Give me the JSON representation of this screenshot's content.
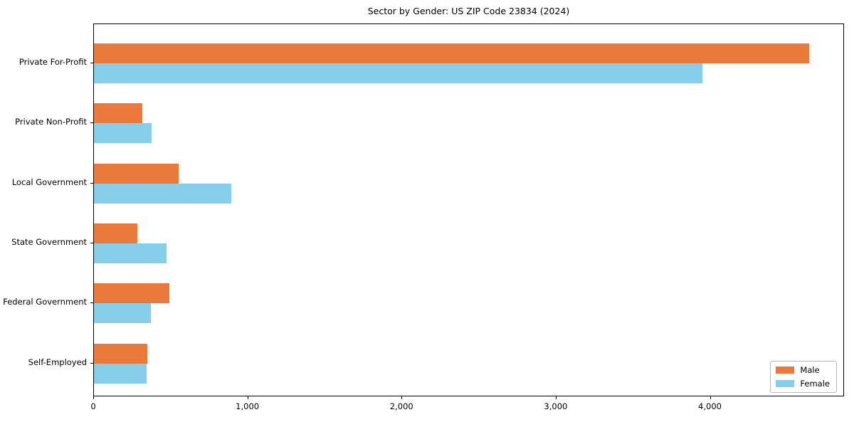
{
  "title": "Sector by Gender: US ZIP Code 23834 (2024)",
  "legend": {
    "items": [
      {
        "label": "Male",
        "color": "#e97a3c"
      },
      {
        "label": "Female",
        "color": "#87ceeb"
      }
    ]
  },
  "chart_data": {
    "type": "bar",
    "orientation": "horizontal",
    "title": "Sector by Gender: US ZIP Code 23834 (2024)",
    "categories": [
      "Private For-Profit",
      "Private Non-Profit",
      "Local Government",
      "State Government",
      "Federal Government",
      "Self-Employed"
    ],
    "series": [
      {
        "name": "Male",
        "color": "#e97a3c",
        "values": [
          4640,
          315,
          550,
          280,
          490,
          345
        ]
      },
      {
        "name": "Female",
        "color": "#87ceeb",
        "values": [
          3945,
          375,
          890,
          470,
          370,
          340
        ]
      }
    ],
    "xlabel": "",
    "ylabel": "",
    "xlim": [
      0,
      4870
    ],
    "xticks": [
      0,
      1000,
      2000,
      3000,
      4000
    ],
    "xtick_labels": [
      "0",
      "1,000",
      "2,000",
      "3,000",
      "4,000"
    ],
    "grid": false,
    "legend_position": "lower right",
    "background": "#ffffff"
  }
}
